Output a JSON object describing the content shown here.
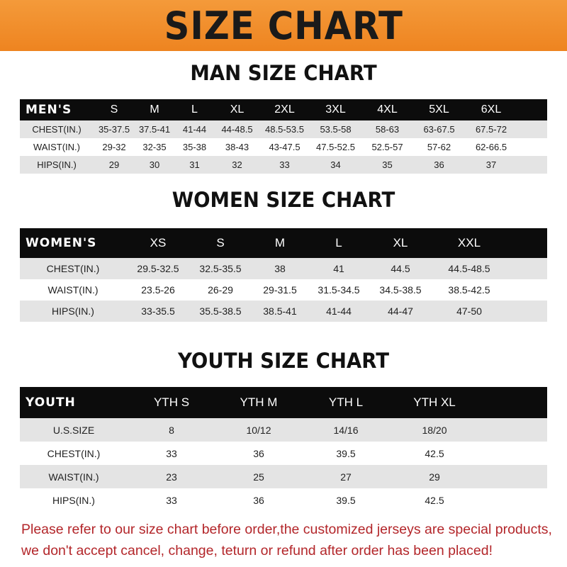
{
  "banner_title": "SIZE CHART",
  "men": {
    "title": "MAN SIZE CHART",
    "header": [
      "MEN'S",
      "S",
      "M",
      "L",
      "XL",
      "2XL",
      "3XL",
      "4XL",
      "5XL",
      "6XL"
    ],
    "rows": [
      [
        "CHEST(IN.)",
        "35-37.5",
        "37.5-41",
        "41-44",
        "44-48.5",
        "48.5-53.5",
        "53.5-58",
        "58-63",
        "63-67.5",
        "67.5-72"
      ],
      [
        "WAIST(IN.)",
        "29-32",
        "32-35",
        "35-38",
        "38-43",
        "43-47.5",
        "47.5-52.5",
        "52.5-57",
        "57-62",
        "62-66.5"
      ],
      [
        "HIPS(IN.)",
        "29",
        "30",
        "31",
        "32",
        "33",
        "34",
        "35",
        "36",
        "37"
      ]
    ]
  },
  "women": {
    "title": "WOMEN SIZE CHART",
    "header": [
      "WOMEN'S",
      "XS",
      "S",
      "M",
      "L",
      "XL",
      "XXL"
    ],
    "rows": [
      [
        "CHEST(IN.)",
        "29.5-32.5",
        "32.5-35.5",
        "38",
        "41",
        "44.5",
        "44.5-48.5"
      ],
      [
        "WAIST(IN.)",
        "23.5-26",
        "26-29",
        "29-31.5",
        "31.5-34.5",
        "34.5-38.5",
        "38.5-42.5"
      ],
      [
        "HIPS(IN.)",
        "33-35.5",
        "35.5-38.5",
        "38.5-41",
        "41-44",
        "44-47",
        "47-50"
      ]
    ]
  },
  "youth": {
    "title": "YOUTH SIZE CHART",
    "header": [
      "YOUTH",
      "YTH S",
      "YTH M",
      "YTH L",
      "YTH XL"
    ],
    "rows": [
      [
        "U.S.SIZE",
        "8",
        "10/12",
        "14/16",
        "18/20"
      ],
      [
        "CHEST(IN.)",
        "33",
        "36",
        "39.5",
        "42.5"
      ],
      [
        "WAIST(IN.)",
        "23",
        "25",
        "27",
        "29"
      ],
      [
        "HIPS(IN.)",
        "33",
        "36",
        "39.5",
        "42.5"
      ]
    ]
  },
  "notice": "Please refer to our size chart before order,the customized jerseys are special products, we don't accept cancel, change, teturn or refund after order has been placed!",
  "colors": {
    "banner": "#ee8420",
    "header_row": "#0c0c0c",
    "stripe": "#e4e4e4",
    "notice": "#b3262a"
  }
}
